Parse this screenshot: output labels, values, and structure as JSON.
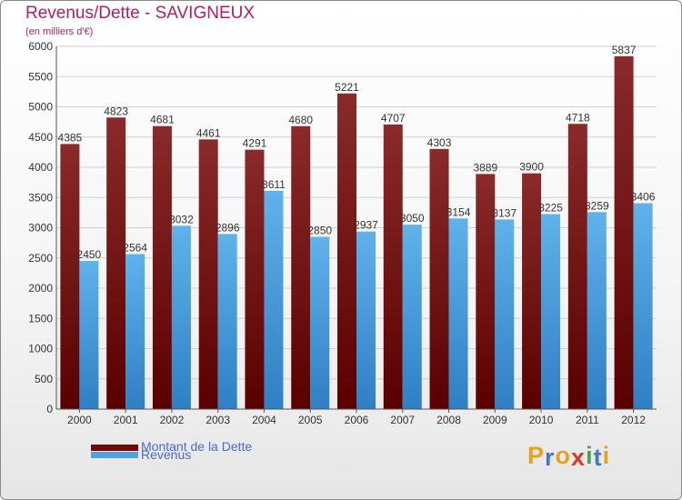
{
  "header": {
    "title": "Revenus/Dette - SAVIGNEUX",
    "subtitle": "(en milliers d'€)"
  },
  "legend": {
    "items": [
      {
        "label": "Montant de la Dette",
        "color": "#6b0a0a"
      },
      {
        "label": "Revenus",
        "color": "#4fa3e0"
      }
    ]
  },
  "logo": {
    "text": "Proxiti",
    "letter_colors": [
      "#e8a21a",
      "#3f79c8",
      "#e8a21a",
      "#d63a2a",
      "#4ea05a",
      "#3f79c8",
      "#e8a21a"
    ]
  },
  "chart_data": {
    "type": "bar",
    "title": "Revenus/Dette - SAVIGNEUX",
    "subtitle": "(en milliers d'€)",
    "categories": [
      "2000",
      "2001",
      "2002",
      "2003",
      "2004",
      "2005",
      "2006",
      "2007",
      "2008",
      "2009",
      "2010",
      "2011",
      "2012"
    ],
    "series": [
      {
        "name": "Montant de la Dette",
        "color": "#8b1e1e",
        "values": [
          4385,
          4823,
          4681,
          4461,
          4291,
          4680,
          5221,
          4707,
          4303,
          3889,
          3900,
          4718,
          5837
        ]
      },
      {
        "name": "Revenus",
        "color": "#4fa3e0",
        "values": [
          2450,
          2564,
          3032,
          2896,
          3611,
          2850,
          2937,
          3050,
          3154,
          3137,
          3225,
          3259,
          3406
        ]
      }
    ],
    "ylim": [
      0,
      6000
    ],
    "yticks": [
      0,
      500,
      1000,
      1500,
      2000,
      2500,
      3000,
      3500,
      4000,
      4500,
      5000,
      5500,
      6000
    ],
    "grid": true,
    "legend_position": "bottom-left"
  }
}
